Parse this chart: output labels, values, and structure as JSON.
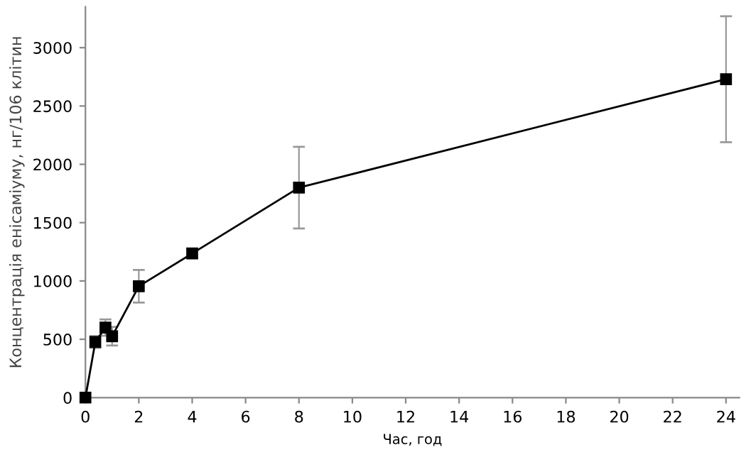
{
  "chart_data": {
    "type": "line",
    "xlabel": "Час, год",
    "ylabel": "Концентрація енісаміуму, нг/106 клітин",
    "x": [
      0,
      0.37,
      0.75,
      1,
      2,
      4,
      8,
      24
    ],
    "series": [
      {
        "color": "#000000",
        "values": [
          0,
          477,
          600,
          526,
          955,
          1236,
          1800,
          2730
        ],
        "errors": [
          null,
          50,
          70,
          80,
          140,
          40,
          350,
          540
        ]
      }
    ],
    "xlim": [
      0,
      24.5
    ],
    "xticks": [
      0,
      2,
      4,
      6,
      8,
      10,
      12,
      14,
      16,
      18,
      20,
      22,
      24
    ],
    "ylim": [
      0,
      3350
    ],
    "yticks": [
      0,
      500,
      1000,
      1500,
      2000,
      2500,
      3000
    ],
    "marker": "square",
    "line_style": "solid",
    "grid": false,
    "legend": false
  }
}
